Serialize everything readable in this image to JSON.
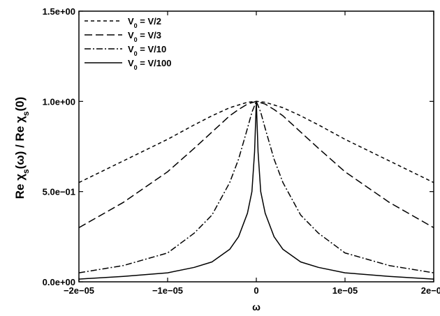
{
  "chart_data": {
    "type": "line",
    "title": "",
    "xlabel": "ω",
    "ylabel": {
      "prefix": "Re χ",
      "sub1": "s",
      "mid": "(ω) / Re χ",
      "sub2": "s",
      "suffix": "(0)"
    },
    "xlim": [
      -2e-05,
      2e-05
    ],
    "ylim": [
      0,
      1.5
    ],
    "xticks": [
      {
        "value": -2e-05,
        "label": "−2e−05"
      },
      {
        "value": -1e-05,
        "label": "−1e−05"
      },
      {
        "value": 0,
        "label": "0"
      },
      {
        "value": 1e-05,
        "label": "1e−05"
      },
      {
        "value": 2e-05,
        "label": "2e−05"
      }
    ],
    "yticks": [
      {
        "value": 0,
        "label": "0.0e+00"
      },
      {
        "value": 0.5,
        "label": "5.0e−01"
      },
      {
        "value": 1.0,
        "label": "1.0e+00"
      },
      {
        "value": 1.5,
        "label": "1.5e+00"
      }
    ],
    "grid": false,
    "legend_position": "top-left",
    "series": [
      {
        "name": "V0 = V/2",
        "legend": {
          "main": "V",
          "sub": "0",
          "rest": " = V/2"
        },
        "dash": "dashed-short",
        "x": [
          -2e-05,
          -1.5e-05,
          -1e-05,
          -7e-06,
          -5e-06,
          -3e-06,
          -2e-06,
          -1e-06,
          0,
          1e-06,
          2e-06,
          3e-06,
          5e-06,
          7e-06,
          1e-05,
          1.5e-05,
          2e-05
        ],
        "y": [
          0.55,
          0.67,
          0.79,
          0.87,
          0.92,
          0.965,
          0.98,
          0.995,
          1.0,
          0.995,
          0.98,
          0.965,
          0.92,
          0.87,
          0.79,
          0.67,
          0.55
        ]
      },
      {
        "name": "V0 = V/3",
        "legend": {
          "main": "V",
          "sub": "0",
          "rest": " = V/3"
        },
        "dash": "dashed-long",
        "x": [
          -2e-05,
          -1.5e-05,
          -1e-05,
          -7e-06,
          -5e-06,
          -3e-06,
          -2e-06,
          -1e-06,
          0,
          1e-06,
          2e-06,
          3e-06,
          5e-06,
          7e-06,
          1e-05,
          1.5e-05,
          2e-05
        ],
        "y": [
          0.3,
          0.44,
          0.61,
          0.74,
          0.83,
          0.92,
          0.955,
          0.985,
          1.0,
          0.985,
          0.955,
          0.92,
          0.83,
          0.74,
          0.61,
          0.44,
          0.3
        ]
      },
      {
        "name": "V0 = V/10",
        "legend": {
          "main": "V",
          "sub": "0",
          "rest": " = V/10"
        },
        "dash": "dash-dot",
        "x": [
          -2e-05,
          -1.5e-05,
          -1e-05,
          -7e-06,
          -5e-06,
          -3e-06,
          -2e-06,
          -1e-06,
          -5e-07,
          0,
          5e-07,
          1e-06,
          2e-06,
          3e-06,
          5e-06,
          7e-06,
          1e-05,
          1.5e-05,
          2e-05
        ],
        "y": [
          0.05,
          0.09,
          0.16,
          0.27,
          0.37,
          0.55,
          0.68,
          0.85,
          0.94,
          1.0,
          0.94,
          0.85,
          0.68,
          0.55,
          0.37,
          0.27,
          0.16,
          0.09,
          0.05
        ]
      },
      {
        "name": "V0 = V/100",
        "legend": {
          "main": "V",
          "sub": "0",
          "rest": " = V/100"
        },
        "dash": "solid",
        "x": [
          -2e-05,
          -1.5e-05,
          -1e-05,
          -7e-06,
          -5e-06,
          -3e-06,
          -2e-06,
          -1e-06,
          -5e-07,
          -2e-07,
          0,
          2e-07,
          5e-07,
          1e-06,
          2e-06,
          3e-06,
          5e-06,
          7e-06,
          1e-05,
          1.5e-05,
          2e-05
        ],
        "y": [
          0.015,
          0.03,
          0.05,
          0.08,
          0.11,
          0.18,
          0.25,
          0.38,
          0.5,
          0.72,
          1.0,
          0.72,
          0.5,
          0.38,
          0.25,
          0.18,
          0.11,
          0.08,
          0.05,
          0.03,
          0.015
        ]
      }
    ]
  }
}
